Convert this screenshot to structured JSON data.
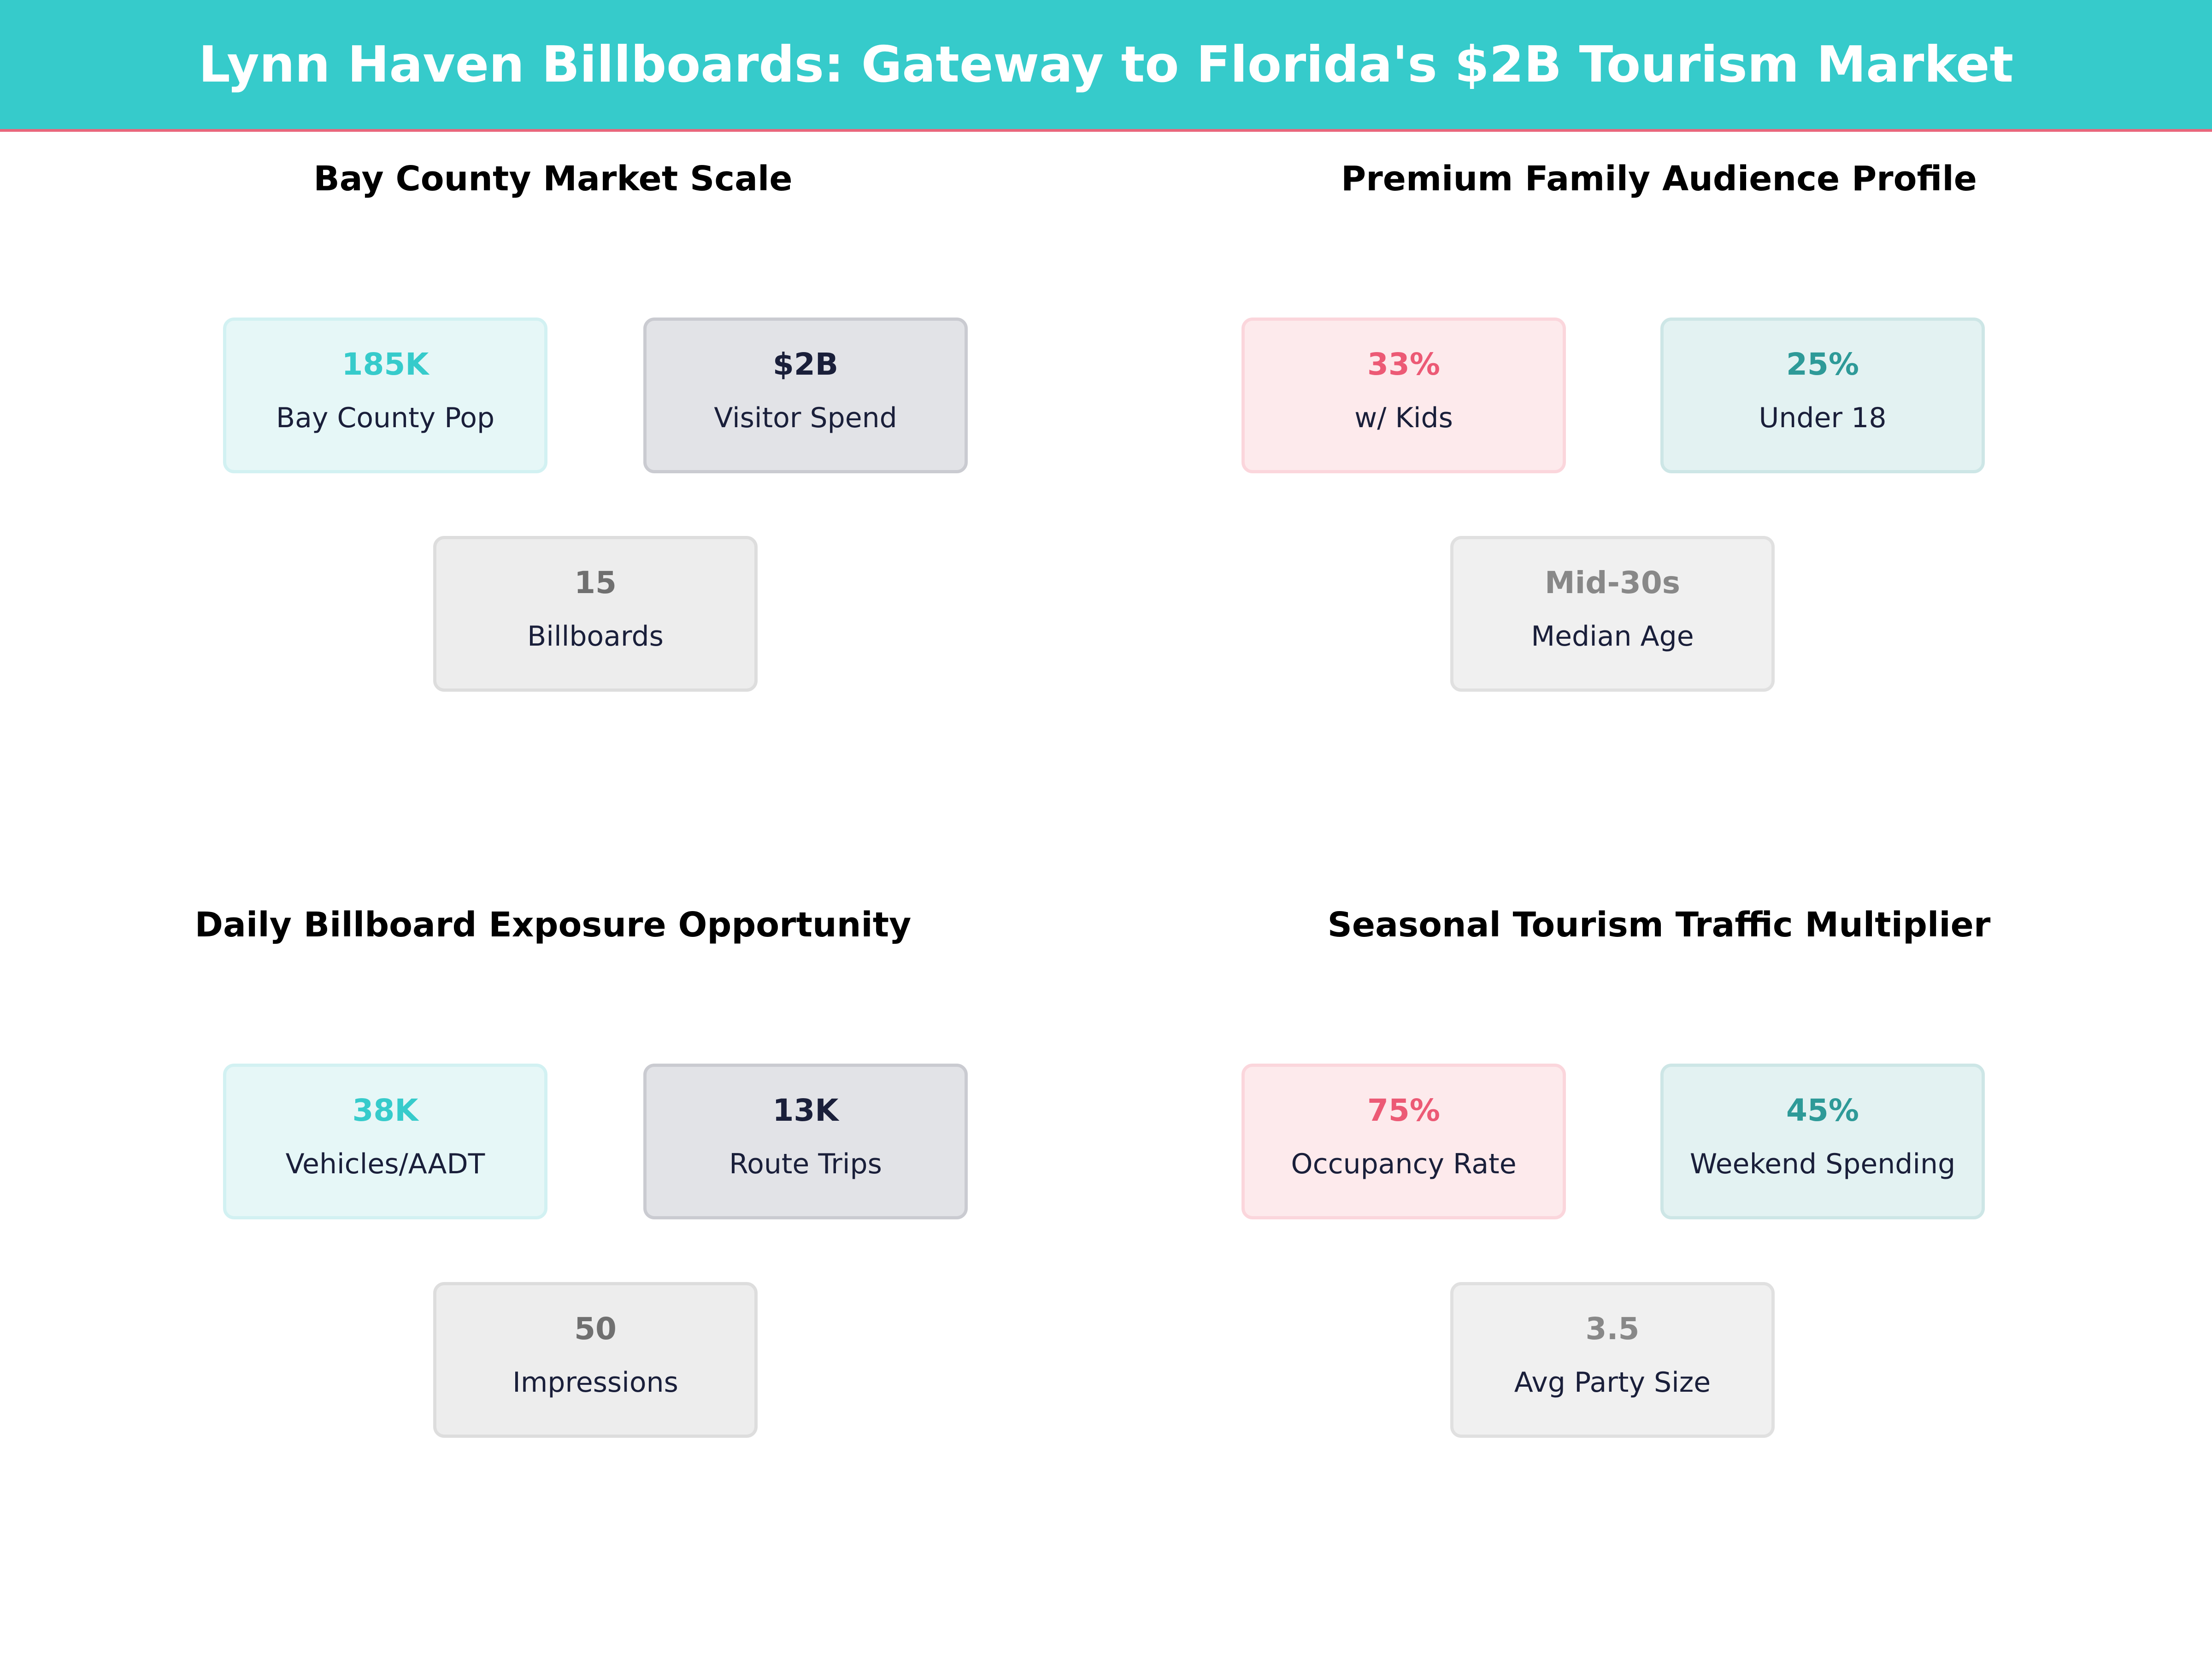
{
  "header": {
    "title": "Lynn Haven Billboards: Gateway to Florida's $2B Tourism Market"
  },
  "colors": {
    "header_bg": "#36CBCB",
    "accent_line": "#E8677C",
    "teal": "#36CBCB",
    "navy": "#1A1F3A",
    "gray": "#707070",
    "pink": "#EC5A75",
    "dark_teal": "#2E9A98"
  },
  "panels": [
    {
      "title": "Bay County Market Scale",
      "cards": [
        {
          "value": "185K",
          "label": "Bay County Pop"
        },
        {
          "value": "$2B",
          "label": "Visitor Spend"
        },
        {
          "value": "15",
          "label": "Billboards"
        }
      ]
    },
    {
      "title": "Premium Family Audience Profile",
      "cards": [
        {
          "value": "33%",
          "label": "w/ Kids"
        },
        {
          "value": "25%",
          "label": "Under 18"
        },
        {
          "value": "Mid-30s",
          "label": "Median Age"
        }
      ]
    },
    {
      "title": "Daily Billboard Exposure Opportunity",
      "cards": [
        {
          "value": "38K",
          "label": "Vehicles/AADT"
        },
        {
          "value": "13K",
          "label": "Route Trips"
        },
        {
          "value": "50",
          "label": "Impressions"
        }
      ]
    },
    {
      "title": "Seasonal Tourism Traffic Multiplier",
      "cards": [
        {
          "value": "75%",
          "label": "Occupancy Rate"
        },
        {
          "value": "45%",
          "label": "Weekend Spending"
        },
        {
          "value": "3.5",
          "label": "Avg Party Size"
        }
      ]
    }
  ]
}
